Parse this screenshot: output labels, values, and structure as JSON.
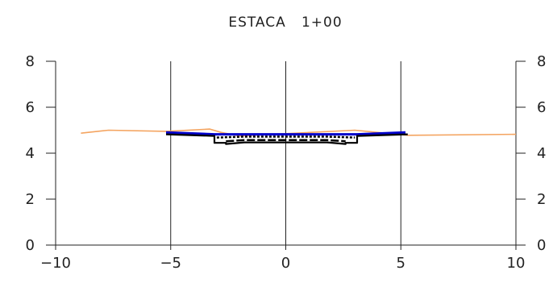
{
  "chart_data": {
    "type": "line",
    "title": "ESTACA   1+00",
    "xlabel": "",
    "ylabel": "",
    "xlim": [
      -10,
      10
    ],
    "ylim": [
      0,
      8
    ],
    "x_ticks": [
      -10,
      -5,
      0,
      5,
      10
    ],
    "y_ticks": [
      0,
      2,
      4,
      6,
      8
    ],
    "y_ticks_right": true,
    "grid": "x-only",
    "colors": {
      "terrain": "#f4a460",
      "surface": "#0000cc",
      "structure": "#000000"
    },
    "series": [
      {
        "role": "terrain",
        "x": [
          -8.9,
          -7.7,
          -5.2,
          -3.3,
          -2.8,
          -2.0,
          0.0,
          3.0,
          5.3,
          10.0
        ],
        "y": [
          4.87,
          5.0,
          4.95,
          5.05,
          4.9,
          4.75,
          4.85,
          5.0,
          4.78,
          4.82
        ]
      },
      {
        "role": "surface",
        "x": [
          -5.2,
          -3.1,
          3.1,
          5.2
        ],
        "y": [
          4.9,
          4.82,
          4.82,
          4.9
        ]
      },
      {
        "role": "structure-outer",
        "x": [
          -5.2,
          -3.1,
          -3.1,
          -2.6,
          -2.6,
          -1.8,
          1.8,
          2.6,
          2.6,
          3.1,
          3.1,
          5.3
        ],
        "y": [
          4.82,
          4.75,
          4.45,
          4.45,
          4.4,
          4.47,
          4.47,
          4.4,
          4.45,
          4.45,
          4.75,
          4.82
        ]
      },
      {
        "role": "structure-inner",
        "x": [
          -3.0,
          -1.8,
          1.8,
          3.0
        ],
        "y": [
          4.68,
          4.72,
          4.72,
          4.68
        ]
      },
      {
        "role": "structure-base",
        "x": [
          -2.6,
          -1.8,
          1.8,
          2.6
        ],
        "y": [
          4.52,
          4.57,
          4.57,
          4.52
        ]
      }
    ]
  }
}
